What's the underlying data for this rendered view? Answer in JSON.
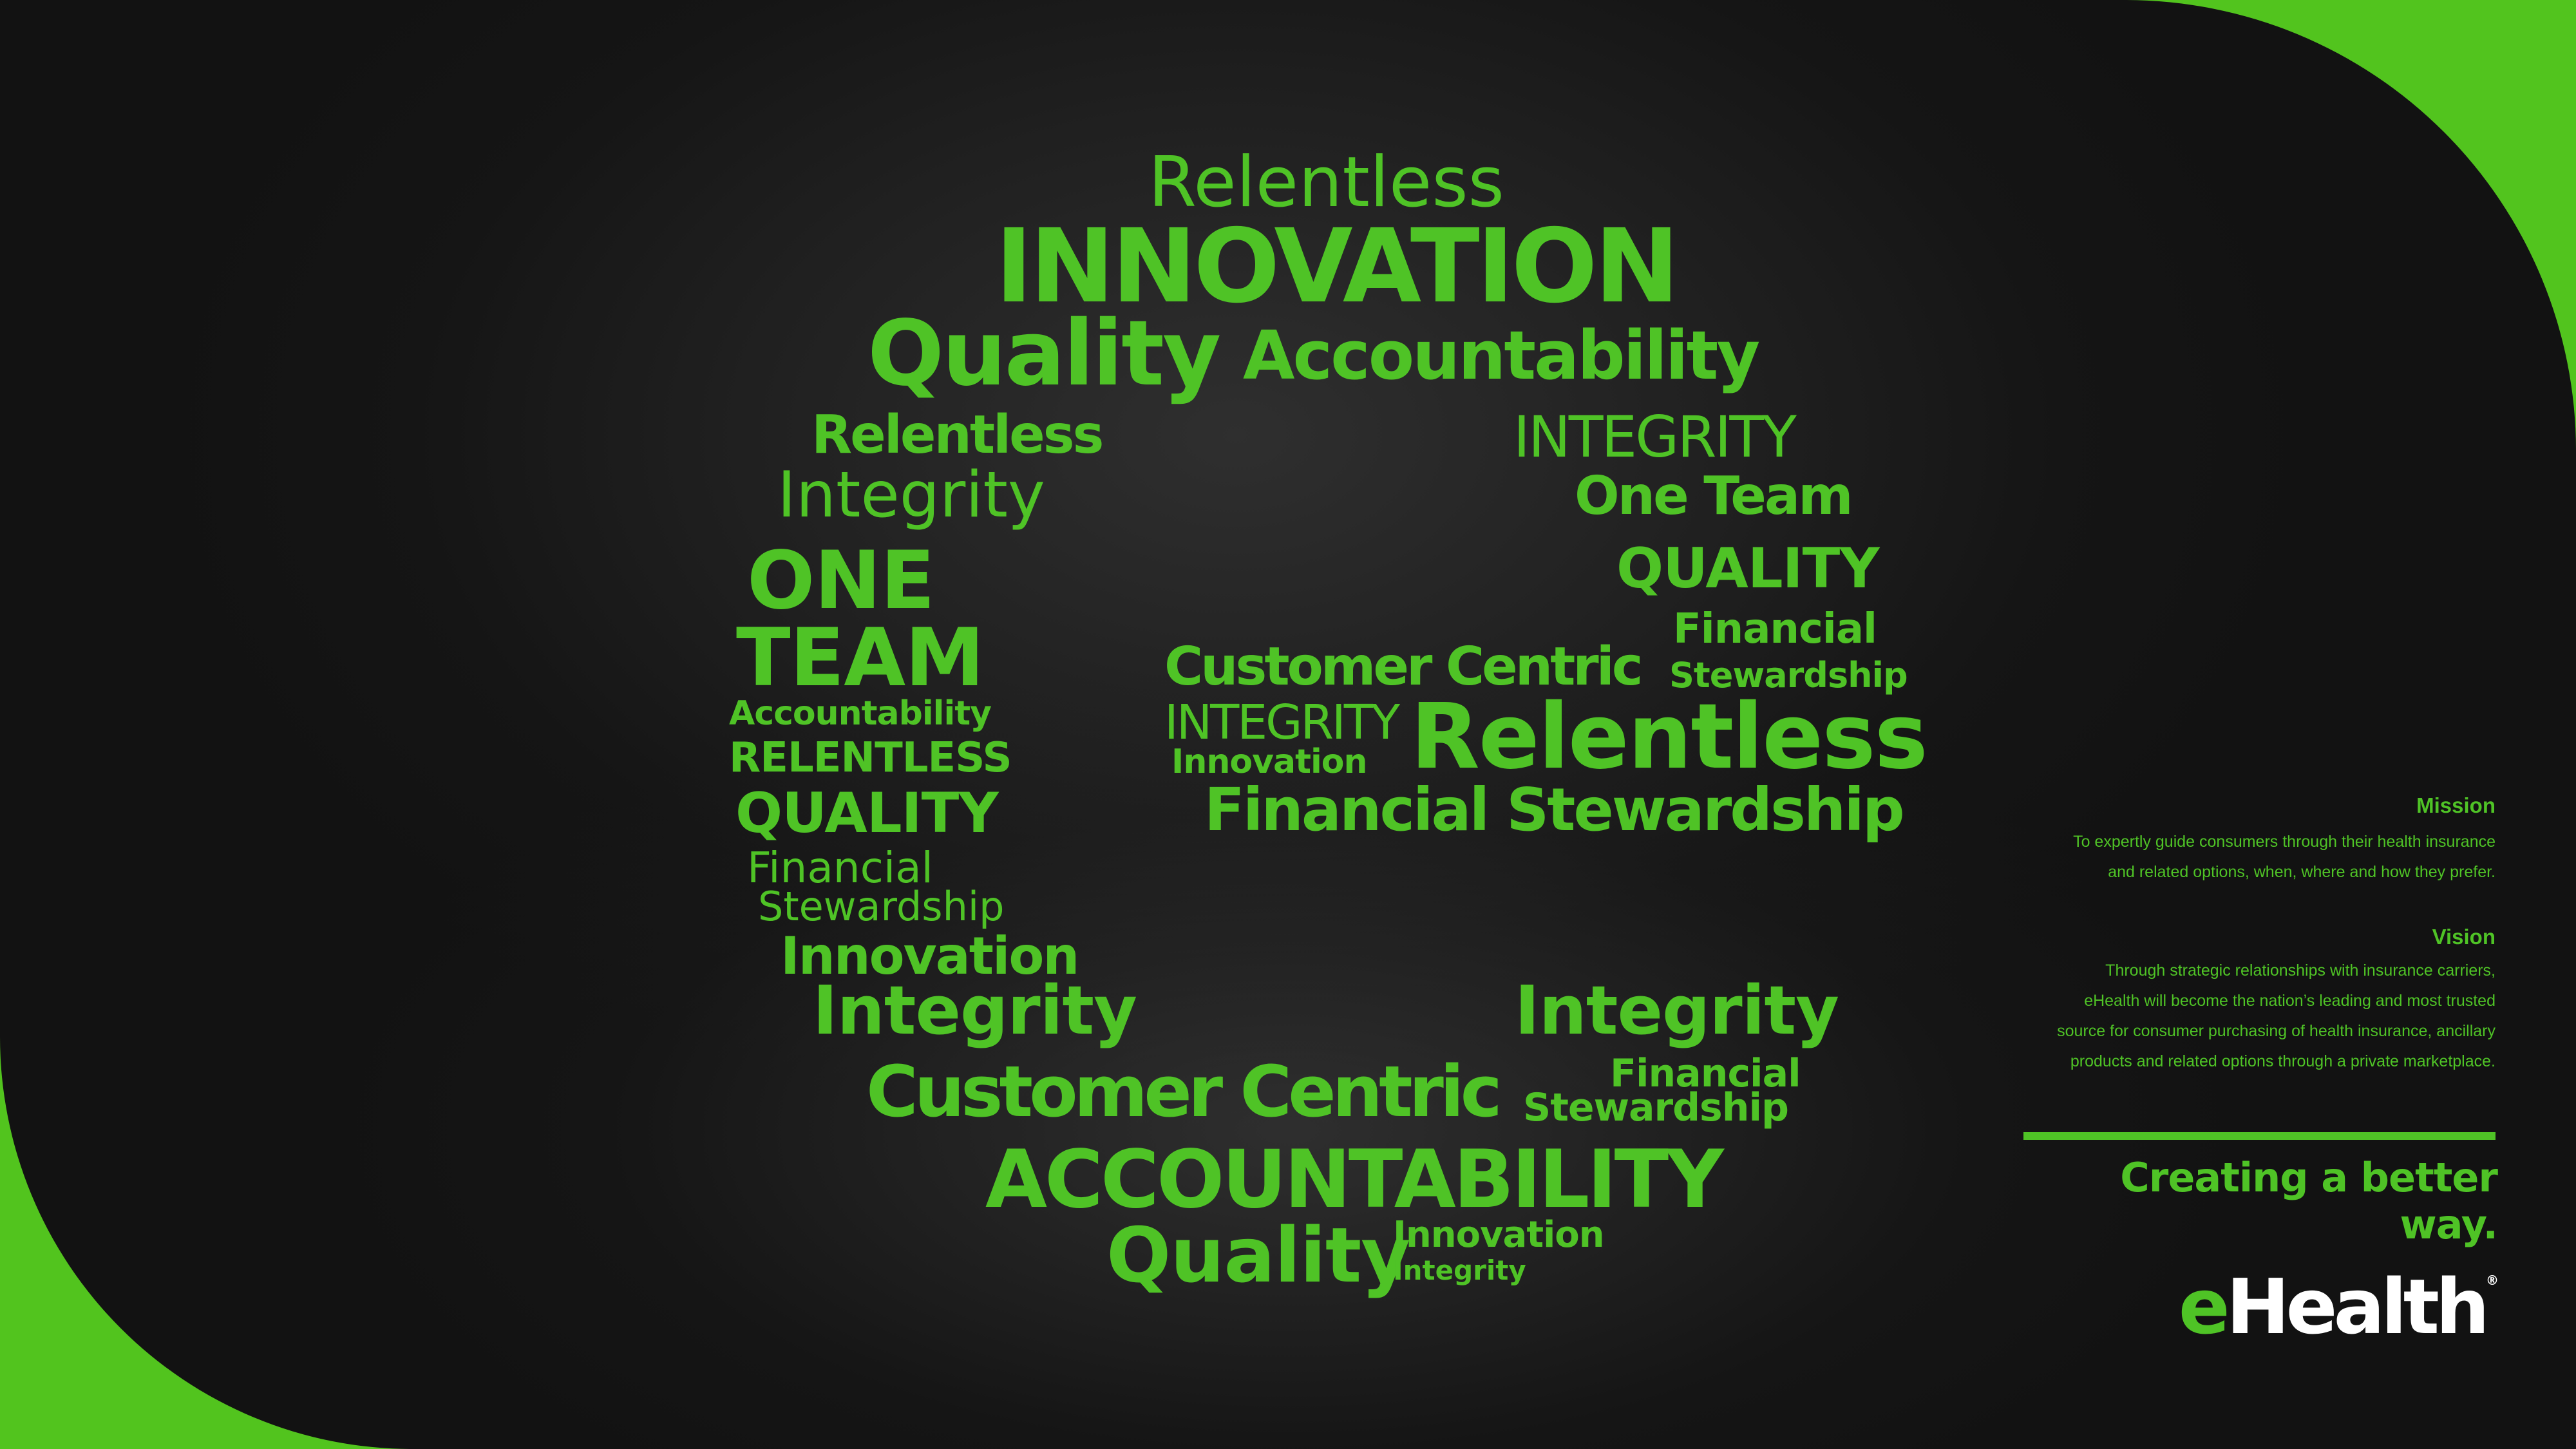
{
  "colors": {
    "accent": "#4fc326",
    "background": "#1b1b1b",
    "logo_secondary": "#ffffff"
  },
  "words": [
    "Relentless",
    "INNOVATION",
    "Quality",
    "Accountability",
    "Relentless",
    "INTEGRITY",
    "Integrity",
    "One Team",
    "ONE",
    "TEAM",
    "QUALITY",
    "Customer Centric",
    "Financial",
    "Stewardship",
    "INTEGRITY",
    "Innovation",
    "Relentless",
    "Accountability",
    "RELENTLESS",
    "QUALITY",
    "Financial Stewardship",
    "Financial",
    "Stewardship",
    "Innovation",
    "Integrity",
    "Integrity",
    "Customer Centric",
    "Financial",
    "Stewardship",
    "ACCOUNTABILITY",
    "Quality",
    "Innovation",
    "Integrity"
  ],
  "sidebar": {
    "mission_heading": "Mission",
    "mission_lines": [
      "To expertly guide consumers through their health insurance",
      "and related options, when, where and how they prefer."
    ],
    "vision_heading": "Vision",
    "vision_lines": [
      "Through strategic relationships with insurance carriers,",
      "eHealth will become the nation’s leading and most trusted",
      "source for consumer purchasing of health insurance, ancillary",
      "products and related options through a private marketplace."
    ],
    "tagline": "Creating a better way."
  },
  "logo": {
    "part1": "e",
    "part2": "Health",
    "mark": "®"
  }
}
